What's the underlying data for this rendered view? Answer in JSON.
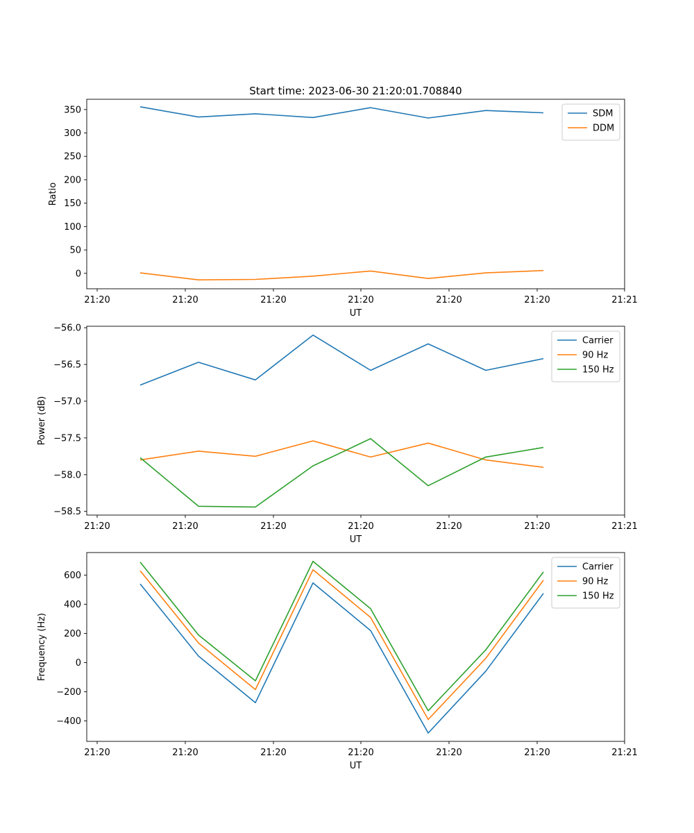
{
  "chart_data": [
    {
      "type": "line",
      "title": "Start time: 2023-06-30 21:20:01.708840",
      "xlabel": "UT",
      "ylabel": "Ratio",
      "x_tick_labels": [
        "21:20",
        "21:20",
        "21:20",
        "21:20",
        "21:20",
        "21:20",
        "21:20"
      ],
      "x_tick_last": "21:21",
      "y_ticks": [
        0,
        50,
        100,
        150,
        200,
        250,
        300,
        350
      ],
      "y_tick_labels": [
        "0",
        "50",
        "100",
        "150",
        "200",
        "250",
        "300",
        "350"
      ],
      "ylim": [
        -33,
        372
      ],
      "legend": "top-right",
      "grid": false,
      "series": [
        {
          "name": "SDM",
          "color": "#1f77b4",
          "values": [
            356,
            334,
            341,
            333,
            354,
            332,
            348,
            343
          ]
        },
        {
          "name": "DDM",
          "color": "#ff7f0e",
          "values": [
            1,
            -14,
            -13,
            -6,
            5,
            -11,
            1,
            6
          ]
        }
      ]
    },
    {
      "type": "line",
      "title": "",
      "xlabel": "UT",
      "ylabel": "Power (dB)",
      "x_tick_labels": [
        "21:20",
        "21:20",
        "21:20",
        "21:20",
        "21:20",
        "21:20",
        "21:20"
      ],
      "x_tick_last": "21:21",
      "y_ticks": [
        -56.0,
        -56.5,
        -57.0,
        -57.5,
        -58.0,
        -58.5
      ],
      "y_tick_labels": [
        "−56.0",
        "−56.5",
        "−57.0",
        "−57.5",
        "−58.0",
        "−58.5"
      ],
      "ylim": [
        -58.55,
        -55.98
      ],
      "legend": "top-right",
      "grid": false,
      "series": [
        {
          "name": "Carrier",
          "color": "#1f77b4",
          "values": [
            -56.78,
            -56.47,
            -56.71,
            -56.1,
            -56.58,
            -56.22,
            -56.58,
            -56.42
          ]
        },
        {
          "name": "90 Hz",
          "color": "#ff7f0e",
          "values": [
            -57.8,
            -57.68,
            -57.75,
            -57.54,
            -57.76,
            -57.57,
            -57.8,
            -57.9
          ]
        },
        {
          "name": "150 Hz",
          "color": "#2ca02c",
          "values": [
            -57.77,
            -58.43,
            -58.44,
            -57.88,
            -57.51,
            -58.15,
            -57.76,
            -57.63
          ]
        }
      ]
    },
    {
      "type": "line",
      "title": "",
      "xlabel": "UT",
      "ylabel": "Frequency (Hz)",
      "x_tick_labels": [
        "21:20",
        "21:20",
        "21:20",
        "21:20",
        "21:20",
        "21:20",
        "21:20"
      ],
      "x_tick_last": "21:21",
      "y_ticks": [
        -400,
        -200,
        0,
        200,
        400,
        600
      ],
      "y_tick_labels": [
        "−400",
        "−200",
        "0",
        "200",
        "400",
        "600"
      ],
      "ylim": [
        -540,
        755
      ],
      "legend": "top-right",
      "grid": false,
      "series": [
        {
          "name": "Carrier",
          "color": "#1f77b4",
          "values": [
            540,
            45,
            -275,
            547,
            220,
            -483,
            -58,
            475
          ]
        },
        {
          "name": "90 Hz",
          "color": "#ff7f0e",
          "values": [
            630,
            135,
            -185,
            637,
            310,
            -390,
            30,
            565
          ]
        },
        {
          "name": "150 Hz",
          "color": "#2ca02c",
          "values": [
            690,
            190,
            -125,
            695,
            370,
            -330,
            88,
            622
          ]
        }
      ]
    }
  ]
}
